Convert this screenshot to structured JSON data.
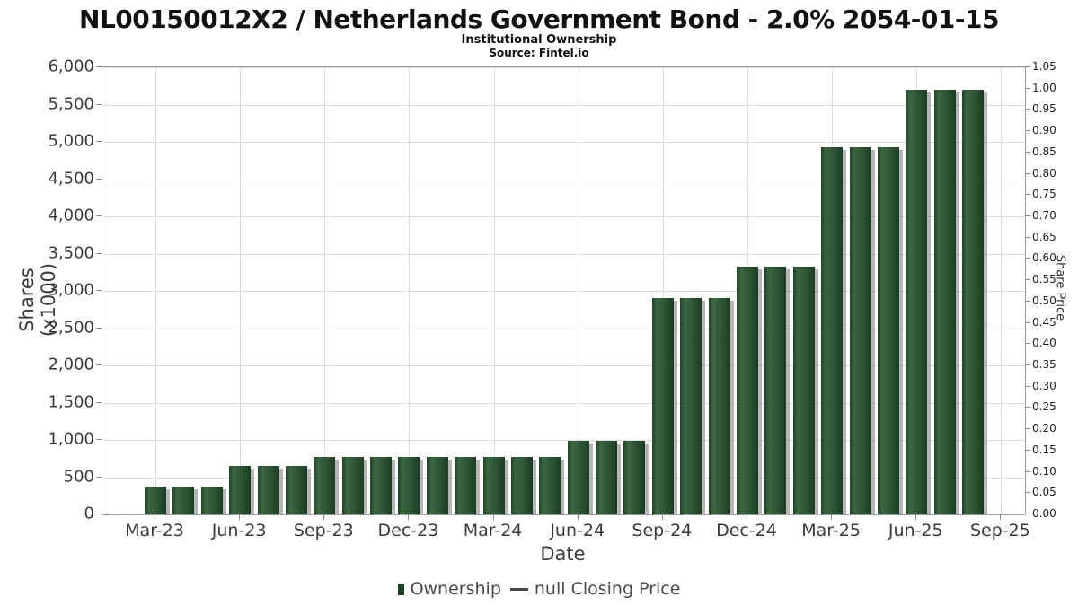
{
  "header": {
    "title": "NL00150012X2 / Netherlands Government Bond - 2.0% 2054-01-15",
    "subtitle": "Institutional Ownership",
    "source": "Source: Fintel.io"
  },
  "chart_data": {
    "type": "bar",
    "title": "NL00150012X2 / Netherlands Government Bond - 2.0% 2054-01-15",
    "subtitle": "Institutional Ownership",
    "source": "Source: Fintel.io",
    "x": [
      "Mar-23",
      "Apr-23",
      "May-23",
      "Jun-23",
      "Jul-23",
      "Aug-23",
      "Sep-23",
      "Oct-23",
      "Nov-23",
      "Dec-23",
      "Jan-24",
      "Feb-24",
      "Mar-24",
      "Apr-24",
      "May-24",
      "Jun-24",
      "Jul-24",
      "Aug-24",
      "Sep-24",
      "Oct-24",
      "Nov-24",
      "Dec-24",
      "Jan-25",
      "Feb-25",
      "Mar-25",
      "Apr-25",
      "May-25",
      "Jun-25",
      "Jul-25",
      "Aug-25"
    ],
    "series": [
      {
        "name": "Ownership",
        "values": [
          370,
          370,
          370,
          655,
          655,
          655,
          770,
          770,
          770,
          770,
          770,
          770,
          770,
          770,
          770,
          985,
          985,
          985,
          2900,
          2900,
          2900,
          3320,
          3320,
          3320,
          4925,
          4925,
          4925,
          5700,
          5700,
          5700
        ]
      },
      {
        "name": "null Closing Price",
        "values": []
      }
    ],
    "xlabel": "Date",
    "ylabel_left": "Shares (x1000)",
    "ylabel_right": "Share Price",
    "ylim_left": [
      0,
      6000
    ],
    "ylim_right": [
      0,
      1.05
    ],
    "y_ticks_left": [
      "0",
      "500",
      "1,000",
      "1,500",
      "2,000",
      "2,500",
      "3,000",
      "3,500",
      "4,000",
      "4,500",
      "5,000",
      "5,500",
      "6,000"
    ],
    "y_ticks_right": [
      "0.00",
      "0.05",
      "0.10",
      "0.15",
      "0.20",
      "0.25",
      "0.30",
      "0.35",
      "0.40",
      "0.45",
      "0.50",
      "0.55",
      "0.60",
      "0.65",
      "0.70",
      "0.75",
      "0.80",
      "0.85",
      "0.90",
      "0.95",
      "1.00",
      "1.05"
    ],
    "x_ticks": [
      "Mar-23",
      "Jun-23",
      "Sep-23",
      "Dec-23",
      "Mar-24",
      "Jun-24",
      "Sep-24",
      "Dec-24",
      "Mar-25",
      "Jun-25",
      "Sep-25"
    ],
    "grid": true,
    "legend_position": "bottom",
    "bar_color": "#2e5635",
    "bar_shadow_color": "#6e6e6e",
    "gridline_color": "#dcdcdc"
  },
  "legend": {
    "items": [
      {
        "label": "Ownership",
        "swatch": "square",
        "color": "#1d4023"
      },
      {
        "label": "null Closing Price",
        "swatch": "line",
        "color": "#4a4a4a"
      }
    ]
  }
}
